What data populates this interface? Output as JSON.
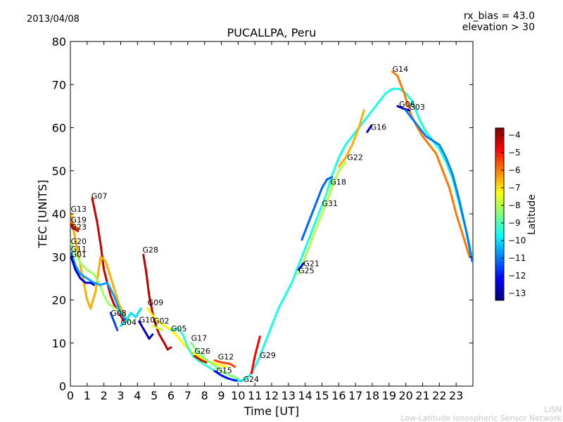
{
  "header": {
    "date": "2013/04/08",
    "rx_bias": "rx_bias = 43.0",
    "elevation": "elevation > 30"
  },
  "footer": {
    "line1": "LISN",
    "line2": "Low-Latitude Ionospheric Sensor Network"
  },
  "chart_data": {
    "type": "line",
    "title": "PUCALLPA, Peru",
    "xlabel": "Time [UT]",
    "ylabel": "TEC [UNITS]",
    "xlim": [
      0,
      24
    ],
    "ylim": [
      0,
      80
    ],
    "xticks": [
      0,
      1,
      2,
      3,
      4,
      5,
      6,
      7,
      8,
      9,
      10,
      11,
      12,
      13,
      14,
      15,
      16,
      17,
      18,
      19,
      20,
      21,
      22,
      23
    ],
    "yticks": [
      0,
      10,
      20,
      30,
      40,
      50,
      60,
      70,
      80
    ],
    "grid": false,
    "colorbar": {
      "label": "Latitude",
      "range": [
        -13.4,
        -3.6
      ],
      "ticks": [
        -4,
        -5,
        -6,
        -7,
        -8,
        -9,
        -10,
        -11,
        -12,
        -13
      ],
      "colormap": [
        "#00007f",
        "#0000ff",
        "#007fff",
        "#00ffff",
        "#7fff7f",
        "#ffff00",
        "#ff7f00",
        "#ff0000",
        "#7f0000"
      ]
    },
    "series": [
      {
        "name": "G07",
        "label_at": [
          1.25,
          43.5
        ],
        "lat": -4.3,
        "points": [
          [
            1.3,
            43.6
          ],
          [
            1.6,
            38
          ],
          [
            1.8,
            33
          ],
          [
            2.0,
            27
          ],
          [
            2.2,
            24
          ],
          [
            2.4,
            21
          ],
          [
            2.6,
            19
          ],
          [
            2.9,
            17
          ],
          [
            3.2,
            15
          ]
        ]
      },
      {
        "name": "G13",
        "label_at": [
          0.02,
          40.5
        ],
        "lat": -6.5,
        "points": [
          [
            0.05,
            40
          ],
          [
            0.2,
            36
          ],
          [
            0.5,
            30
          ],
          [
            0.8,
            24
          ],
          [
            1.0,
            20
          ],
          [
            1.2,
            18
          ],
          [
            1.5,
            22
          ],
          [
            1.8,
            30
          ],
          [
            2.1,
            29
          ],
          [
            2.5,
            24
          ],
          [
            2.9,
            19
          ],
          [
            3.3,
            16
          ]
        ]
      },
      {
        "name": "G19",
        "label_at": [
          0.02,
          38.0
        ],
        "lat": -6.0,
        "points": [
          [
            0.05,
            38
          ],
          [
            0.3,
            37
          ],
          [
            0.5,
            36.5
          ]
        ]
      },
      {
        "name": "G23",
        "label_at": [
          0.02,
          36.3
        ],
        "lat": -4.5,
        "points": [
          [
            0.05,
            37.5
          ],
          [
            0.25,
            36.5
          ],
          [
            0.45,
            36
          ]
        ]
      },
      {
        "name": "G20",
        "label_at": [
          0.02,
          33.0
        ],
        "lat": -8.2,
        "points": [
          [
            0.05,
            33
          ],
          [
            0.3,
            31
          ],
          [
            0.6,
            28.5
          ],
          [
            1.0,
            27
          ],
          [
            1.4,
            26
          ],
          [
            1.7,
            24
          ],
          [
            2.0,
            21
          ],
          [
            2.3,
            19
          ],
          [
            2.7,
            18
          ],
          [
            3.1,
            16.5
          ],
          [
            3.6,
            15
          ]
        ]
      },
      {
        "name": "G11",
        "label_at": [
          0.02,
          31.2
        ],
        "lat": -10.6,
        "points": [
          [
            0.05,
            31
          ],
          [
            0.3,
            28
          ],
          [
            0.6,
            26
          ],
          [
            1.0,
            25
          ],
          [
            1.4,
            24
          ],
          [
            1.8,
            23.5
          ],
          [
            2.2,
            24
          ],
          [
            2.6,
            21
          ],
          [
            3.0,
            17
          ],
          [
            3.4,
            15
          ]
        ]
      },
      {
        "name": "G01",
        "label_at": [
          0.02,
          30.0
        ],
        "lat": -12.5,
        "points": [
          [
            0.05,
            30
          ],
          [
            0.3,
            27
          ],
          [
            0.6,
            25
          ],
          [
            0.9,
            24
          ],
          [
            1.2,
            24
          ],
          [
            1.4,
            23.5
          ]
        ]
      },
      {
        "name": "G28",
        "label_at": [
          4.3,
          31.0
        ],
        "lat": -4.2,
        "points": [
          [
            4.35,
            30.5
          ],
          [
            4.5,
            27
          ],
          [
            4.7,
            21
          ],
          [
            4.9,
            17
          ],
          [
            5.1,
            14
          ],
          [
            5.3,
            12
          ],
          [
            5.6,
            10
          ],
          [
            5.8,
            8.5
          ],
          [
            6.0,
            9
          ]
        ]
      },
      {
        "name": "G09",
        "label_at": [
          4.6,
          18.8
        ],
        "lat": -7.2,
        "points": [
          [
            4.6,
            18
          ],
          [
            4.9,
            16.5
          ],
          [
            5.2,
            15
          ],
          [
            5.6,
            14
          ],
          [
            6.0,
            13
          ],
          [
            6.4,
            11.5
          ],
          [
            6.8,
            9.5
          ],
          [
            7.2,
            8
          ],
          [
            7.6,
            7
          ],
          [
            8.0,
            6
          ],
          [
            8.4,
            5.5
          ],
          [
            8.8,
            5
          ],
          [
            9.3,
            4.5
          ]
        ]
      },
      {
        "name": "G02",
        "label_at": [
          4.95,
          14.5
        ],
        "lat": -7.8,
        "points": [
          [
            4.9,
            14
          ],
          [
            5.2,
            13.5
          ],
          [
            5.5,
            13
          ]
        ]
      },
      {
        "name": "G10",
        "label_at": [
          4.1,
          14.8
        ],
        "lat": -12.8,
        "points": [
          [
            4.1,
            15
          ],
          [
            4.4,
            13
          ],
          [
            4.7,
            11
          ],
          [
            4.9,
            12
          ]
        ]
      },
      {
        "name": "G04",
        "label_at": [
          3.0,
          14.2
        ],
        "lat": -10.0,
        "points": [
          [
            3.0,
            14
          ],
          [
            3.3,
            15
          ],
          [
            3.6,
            17
          ],
          [
            3.9,
            16
          ],
          [
            4.2,
            18
          ]
        ]
      },
      {
        "name": "G08",
        "label_at": [
          2.4,
          16.3
        ],
        "lat": -11.5,
        "points": [
          [
            2.4,
            17
          ],
          [
            2.6,
            15
          ],
          [
            2.8,
            13
          ]
        ]
      },
      {
        "name": "G05",
        "label_at": [
          6.0,
          12.7
        ],
        "lat": -9.2,
        "points": [
          [
            6.0,
            13
          ],
          [
            6.4,
            13.5
          ],
          [
            6.7,
            12
          ],
          [
            7.0,
            9
          ],
          [
            7.3,
            7
          ],
          [
            7.6,
            6
          ],
          [
            8.0,
            5
          ],
          [
            8.4,
            4
          ],
          [
            8.8,
            3
          ],
          [
            9.2,
            2
          ],
          [
            9.6,
            1.5
          ],
          [
            10.0,
            1.5
          ]
        ]
      },
      {
        "name": "G17",
        "label_at": [
          7.2,
          10.5
        ],
        "lat": -8.5,
        "points": [
          [
            7.2,
            10
          ],
          [
            7.6,
            8
          ],
          [
            8.0,
            6.5
          ],
          [
            8.5,
            5
          ],
          [
            9.0,
            3.5
          ],
          [
            9.5,
            2.5
          ],
          [
            10.0,
            1.8
          ]
        ]
      },
      {
        "name": "G26",
        "label_at": [
          7.4,
          7.5
        ],
        "lat": -4.5,
        "points": [
          [
            7.4,
            7
          ],
          [
            7.8,
            6
          ],
          [
            8.1,
            5.5
          ]
        ]
      },
      {
        "name": "G12",
        "label_at": [
          8.8,
          6.2
        ],
        "lat": -5.5,
        "points": [
          [
            8.6,
            6
          ],
          [
            9.0,
            5.5
          ],
          [
            9.5,
            5.2
          ],
          [
            9.8,
            4.5
          ]
        ]
      },
      {
        "name": "G15",
        "label_at": [
          8.7,
          3.0
        ],
        "lat": -12.0,
        "points": [
          [
            8.6,
            3.5
          ],
          [
            9.0,
            2.5
          ],
          [
            9.4,
            1.8
          ],
          [
            9.8,
            1.3
          ],
          [
            10.2,
            1.2
          ]
        ]
      },
      {
        "name": "G24",
        "label_at": [
          10.3,
          1.0
        ],
        "lat": -9.5,
        "points": [
          [
            10.0,
            1.2
          ],
          [
            10.4,
            1.5
          ],
          [
            10.8,
            3
          ],
          [
            11.2,
            6
          ],
          [
            11.6,
            10
          ],
          [
            12.0,
            14
          ],
          [
            12.4,
            18
          ],
          [
            12.8,
            21
          ],
          [
            13.2,
            24
          ],
          [
            13.6,
            28
          ],
          [
            14.0,
            32
          ],
          [
            14.4,
            36
          ],
          [
            14.8,
            40
          ],
          [
            15.2,
            44
          ],
          [
            15.6,
            49
          ],
          [
            16.0,
            53
          ],
          [
            16.4,
            56
          ],
          [
            16.8,
            58
          ],
          [
            17.2,
            60
          ],
          [
            17.6,
            62
          ],
          [
            18.0,
            64
          ],
          [
            18.4,
            66
          ],
          [
            18.8,
            68
          ],
          [
            19.2,
            69
          ],
          [
            19.6,
            69
          ],
          [
            20.0,
            68
          ],
          [
            20.4,
            66
          ],
          [
            20.8,
            62
          ],
          [
            21.2,
            59
          ],
          [
            21.6,
            57
          ],
          [
            22.0,
            55
          ],
          [
            22.4,
            52
          ],
          [
            22.8,
            48
          ],
          [
            23.2,
            42
          ],
          [
            23.6,
            36
          ],
          [
            23.95,
            30
          ]
        ]
      },
      {
        "name": "G29",
        "label_at": [
          11.3,
          6.5
        ],
        "lat": -4.8,
        "points": [
          [
            10.8,
            3
          ],
          [
            11.0,
            7
          ],
          [
            11.3,
            11.5
          ]
        ]
      },
      {
        "name": "G21",
        "label_at": [
          13.9,
          27.8
        ],
        "lat": -8.0,
        "points": [
          [
            13.6,
            26
          ],
          [
            14.0,
            30
          ],
          [
            14.4,
            34
          ],
          [
            14.8,
            38
          ],
          [
            15.2,
            42
          ],
          [
            15.6,
            46
          ],
          [
            16.0,
            50
          ],
          [
            16.4,
            52
          ]
        ]
      },
      {
        "name": "G25",
        "label_at": [
          13.6,
          26.2
        ],
        "lat": -12.4,
        "points": [
          [
            13.6,
            27
          ],
          [
            13.9,
            28.5
          ]
        ]
      },
      {
        "name": "G31",
        "label_at": [
          15.0,
          41.8
        ],
        "lat": -11.2,
        "points": [
          [
            13.8,
            34
          ],
          [
            14.2,
            38
          ],
          [
            14.6,
            42
          ],
          [
            15.0,
            46
          ],
          [
            15.3,
            48
          ],
          [
            15.6,
            48.5
          ]
        ]
      },
      {
        "name": "G18",
        "label_at": [
          15.5,
          46.8
        ],
        "lat": -9.0,
        "points": [
          [
            15.2,
            44
          ],
          [
            15.4,
            46
          ],
          [
            15.6,
            47.5
          ]
        ]
      },
      {
        "name": "G22",
        "label_at": [
          16.5,
          52.5
        ],
        "lat": -6.5,
        "points": [
          [
            16.0,
            51
          ],
          [
            16.4,
            53
          ],
          [
            16.8,
            56
          ],
          [
            17.2,
            60
          ],
          [
            17.5,
            64
          ]
        ]
      },
      {
        "name": "G16",
        "label_at": [
          17.9,
          59.5
        ],
        "lat": -12.8,
        "points": [
          [
            17.7,
            59
          ],
          [
            17.95,
            60.5
          ]
        ]
      },
      {
        "name": "G14",
        "label_at": [
          19.2,
          73.0
        ],
        "lat": -6.0,
        "points": [
          [
            19.2,
            73
          ],
          [
            19.5,
            72
          ],
          [
            19.9,
            68
          ],
          [
            20.3,
            63
          ],
          [
            20.7,
            60
          ],
          [
            21.0,
            58
          ],
          [
            21.4,
            56
          ],
          [
            21.8,
            54
          ],
          [
            22.2,
            50
          ],
          [
            22.6,
            46
          ],
          [
            23.0,
            40
          ],
          [
            23.4,
            35
          ],
          [
            23.8,
            30
          ]
        ]
      },
      {
        "name": "G06",
        "label_at": [
          19.6,
          64.8
        ],
        "lat": -12.9,
        "points": [
          [
            19.5,
            65
          ],
          [
            19.8,
            64.5
          ],
          [
            20.2,
            64
          ]
        ]
      },
      {
        "name": "G03",
        "label_at": [
          20.2,
          64.2
        ],
        "lat": -11.0,
        "points": [
          [
            20.0,
            64
          ],
          [
            20.4,
            62
          ],
          [
            20.8,
            60
          ],
          [
            21.2,
            58
          ],
          [
            21.6,
            57
          ],
          [
            22.0,
            56
          ],
          [
            22.4,
            53
          ],
          [
            22.8,
            49
          ],
          [
            23.2,
            43
          ],
          [
            23.6,
            36
          ],
          [
            23.95,
            29
          ]
        ]
      }
    ]
  }
}
